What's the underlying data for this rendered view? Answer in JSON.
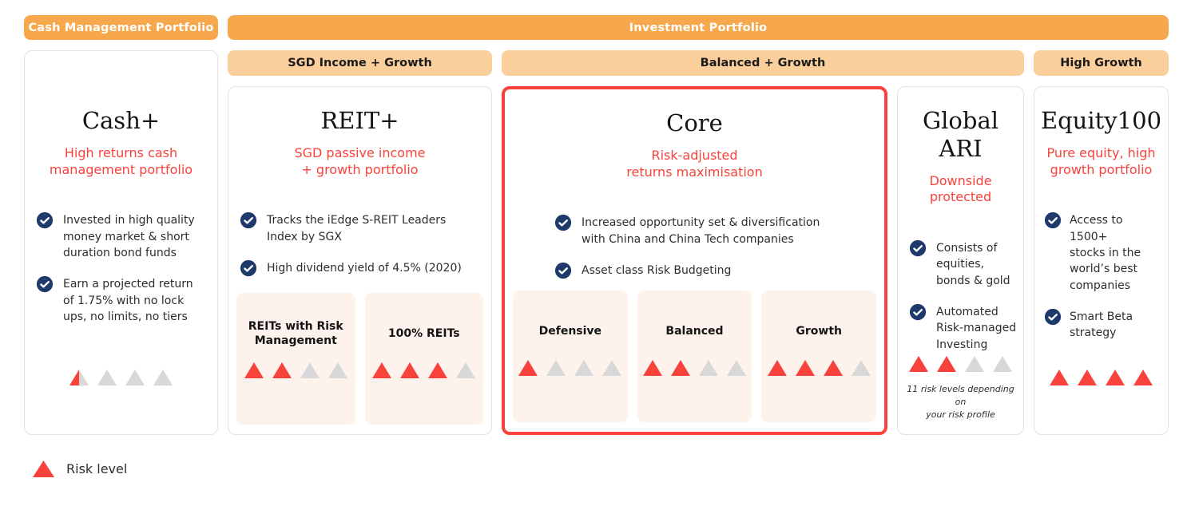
{
  "banners": {
    "cash_management": "Cash Management Portfolio",
    "investment": "Investment Portfolio"
  },
  "group_headers": {
    "sgd_income_growth": "SGD Income + Growth",
    "balanced_growth": "Balanced + Growth",
    "high_growth": "High Growth"
  },
  "cards": [
    {
      "title": "Cash+",
      "subtitle": "High returns cash\nmanagement portfolio",
      "bullets": [
        "Invested in high quality\nmoney market & short\nduration bond funds",
        "Earn a projected return\nof 1.75% with no lock\nups, no limits, no tiers"
      ],
      "risk": {
        "filled": 0.5,
        "total": 4
      }
    },
    {
      "title": "REIT+",
      "subtitle": "SGD passive income\n+ growth portfolio",
      "bullets": [
        "Tracks the iEdge S-REIT Leaders\nIndex by SGX",
        "High dividend yield of 4.5% (2020)"
      ],
      "variants": [
        {
          "label": "REITs with Risk\nManagement",
          "risk": {
            "filled": 2,
            "total": 4
          }
        },
        {
          "label": "100% REITs",
          "risk": {
            "filled": 3,
            "total": 4
          }
        }
      ]
    },
    {
      "title": "Core",
      "subtitle": "Risk-adjusted\nreturns maximisation",
      "highlighted": true,
      "bullets": [
        "Increased opportunity set & diversification\nwith China and China Tech companies",
        "Asset class Risk Budgeting"
      ],
      "variants": [
        {
          "label": "Defensive",
          "risk": {
            "filled": 1,
            "total": 4
          }
        },
        {
          "label": "Balanced",
          "risk": {
            "filled": 2,
            "total": 4
          }
        },
        {
          "label": "Growth",
          "risk": {
            "filled": 3,
            "total": 4
          }
        }
      ]
    },
    {
      "title": "Global ARI",
      "subtitle": "Downside\nprotected",
      "bullets": [
        "Consists of\nequities,\nbonds & gold",
        "Automated\nRisk-managed\nInvesting"
      ],
      "risk": {
        "filled": 2,
        "total": 4
      },
      "note": "11 risk levels depending on\nyour risk profile"
    },
    {
      "title": "Equity100",
      "subtitle": "Pure equity, high\ngrowth portfolio",
      "bullets": [
        "Access to 1500+\nstocks in the\nworld’s best\ncompanies",
        "Smart Beta\nstrategy"
      ],
      "risk": {
        "filled": 4,
        "total": 4
      }
    }
  ],
  "legend": {
    "label": "Risk level"
  },
  "colors": {
    "banner_orange": "#F7A84C",
    "subheader_orange": "#FBCF9B",
    "accent_red": "#F8423C",
    "check_navy": "#1D3A6B",
    "triangle_gray": "#D8D8D8",
    "subbox_cream": "#FDF3EC"
  }
}
